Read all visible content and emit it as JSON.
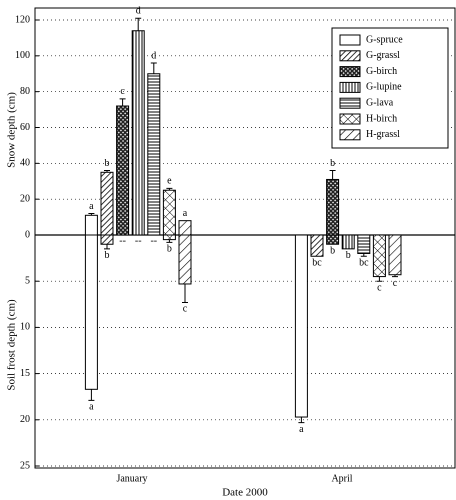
{
  "chart_data": {
    "type": "bar",
    "x_label": "Date 2000",
    "y_label": "Snow depth (cm)",
    "y2_label": "Soil frost depth (cm)",
    "categories": [
      "January",
      "April"
    ],
    "ylim": [
      0,
      120
    ],
    "yticks": [
      0,
      20,
      40,
      60,
      80,
      100,
      120
    ],
    "y2lim": [
      0,
      25
    ],
    "y2ticks": [
      5,
      10,
      15,
      20,
      25
    ],
    "grid": true,
    "legend": "upper right",
    "series": [
      {
        "name": "G-spruce",
        "pattern": "none",
        "values": [
          11,
          0
        ],
        "errors": [
          1,
          null
        ],
        "letters": [
          "a",
          null
        ],
        "frost_values": [
          16.7,
          19.7
        ],
        "frost_errors": [
          1.2,
          0.6
        ],
        "frost_labels": [
          "a",
          "a"
        ]
      },
      {
        "name": "G-grassl",
        "pattern": "diag",
        "values": [
          35,
          0
        ],
        "errors": [
          1,
          null
        ],
        "letters": [
          "b",
          null
        ],
        "frost_values": [
          1.0,
          2.3
        ],
        "frost_errors": [
          0.5,
          null
        ],
        "frost_labels": [
          "b",
          "bc"
        ]
      },
      {
        "name": "G-birch",
        "pattern": "dark",
        "values": [
          72,
          31
        ],
        "errors": [
          4,
          5
        ],
        "letters": [
          "c",
          "b"
        ],
        "frost_values": [
          null,
          1.0
        ],
        "frost_errors": [
          null,
          null
        ],
        "frost_labels": [
          "--",
          "b"
        ]
      },
      {
        "name": "G-lupine",
        "pattern": "vert",
        "values": [
          114,
          0
        ],
        "errors": [
          7,
          null
        ],
        "letters": [
          "d",
          null
        ],
        "frost_values": [
          null,
          1.5
        ],
        "frost_errors": [
          null,
          null
        ],
        "frost_labels": [
          "--",
          "b"
        ]
      },
      {
        "name": "G-lava",
        "pattern": "horiz",
        "values": [
          90,
          0
        ],
        "errors": [
          6,
          null
        ],
        "letters": [
          "d",
          null
        ],
        "frost_values": [
          null,
          2.0
        ],
        "frost_errors": [
          null,
          0.3
        ],
        "frost_labels": [
          "--",
          "bc"
        ]
      },
      {
        "name": "H-birch",
        "pattern": "xcross",
        "values": [
          25,
          0
        ],
        "errors": [
          1,
          null
        ],
        "letters": [
          "e",
          null
        ],
        "frost_values": [
          0.5,
          4.5
        ],
        "frost_errors": [
          0.3,
          0.5
        ],
        "frost_labels": [
          "b",
          "c"
        ]
      },
      {
        "name": "H-grassl",
        "pattern": "wide",
        "values": [
          8,
          0
        ],
        "errors": [
          null,
          null
        ],
        "letters": [
          "a",
          null
        ],
        "frost_values": [
          5.3,
          4.3
        ],
        "frost_errors": [
          2,
          0.2
        ],
        "frost_labels": [
          "c",
          "c"
        ]
      }
    ]
  }
}
